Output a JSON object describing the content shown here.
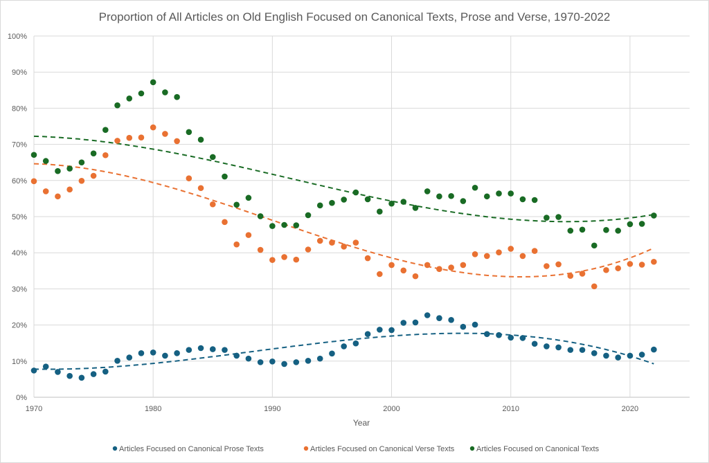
{
  "chart_data": {
    "type": "scatter",
    "title": "Proportion of All Articles on Old English Focused on Canonical Texts, Prose and Verse, 1970-2022",
    "xlabel": "Year",
    "ylabel": "",
    "xlim": [
      1970,
      2025
    ],
    "ylim": [
      0,
      1
    ],
    "x_ticks": [
      1970,
      1980,
      1990,
      2000,
      2010,
      2020
    ],
    "x_tick_labels": [
      "1970",
      "1980",
      "1990",
      "2000",
      "2010",
      "2020"
    ],
    "y_ticks": [
      0,
      0.1,
      0.2,
      0.3,
      0.4,
      0.5,
      0.6,
      0.7,
      0.8,
      0.9,
      1.0
    ],
    "y_tick_labels": [
      "0%",
      "10%",
      "20%",
      "30%",
      "40%",
      "50%",
      "60%",
      "70%",
      "80%",
      "90%",
      "100%"
    ],
    "grid": true,
    "legend_position": "bottom",
    "trendline": "polynomial (dashed)",
    "x": [
      1970,
      1971,
      1972,
      1973,
      1974,
      1975,
      1976,
      1977,
      1978,
      1979,
      1980,
      1981,
      1982,
      1983,
      1984,
      1985,
      1986,
      1987,
      1988,
      1989,
      1990,
      1991,
      1992,
      1993,
      1994,
      1995,
      1996,
      1997,
      1998,
      1999,
      2000,
      2001,
      2002,
      2003,
      2004,
      2005,
      2006,
      2007,
      2008,
      2009,
      2010,
      2011,
      2012,
      2013,
      2014,
      2015,
      2016,
      2017,
      2018,
      2019,
      2020,
      2021,
      2022
    ],
    "series": [
      {
        "name": "Articles Focused on Canonical Prose Texts",
        "color": "#156082",
        "values": [
          0.074,
          0.085,
          0.07,
          0.059,
          0.054,
          0.064,
          0.071,
          0.101,
          0.11,
          0.122,
          0.124,
          0.115,
          0.122,
          0.131,
          0.136,
          0.133,
          0.131,
          0.115,
          0.107,
          0.097,
          0.099,
          0.092,
          0.097,
          0.101,
          0.107,
          0.121,
          0.141,
          0.149,
          0.175,
          0.187,
          0.186,
          0.206,
          0.207,
          0.227,
          0.219,
          0.214,
          0.195,
          0.201,
          0.175,
          0.172,
          0.165,
          0.164,
          0.148,
          0.141,
          0.138,
          0.131,
          0.131,
          0.122,
          0.115,
          0.11,
          0.115,
          0.118,
          0.132
        ]
      },
      {
        "name": "Articles Focused on Canonical Verse Texts",
        "color": "#e97132",
        "values": [
          0.598,
          0.57,
          0.556,
          0.575,
          0.599,
          0.613,
          0.67,
          0.71,
          0.718,
          0.719,
          0.747,
          0.729,
          0.709,
          0.606,
          0.579,
          0.534,
          0.485,
          0.423,
          0.449,
          0.408,
          0.38,
          0.388,
          0.381,
          0.409,
          0.433,
          0.428,
          0.417,
          0.428,
          0.385,
          0.341,
          0.366,
          0.351,
          0.335,
          0.366,
          0.355,
          0.359,
          0.366,
          0.396,
          0.391,
          0.401,
          0.411,
          0.391,
          0.405,
          0.363,
          0.368,
          0.336,
          0.342,
          0.307,
          0.352,
          0.357,
          0.369,
          0.367,
          0.375
        ]
      },
      {
        "name": "Articles Focused on Canonical Texts",
        "color": "#196b24",
        "values": [
          0.671,
          0.654,
          0.626,
          0.633,
          0.65,
          0.675,
          0.74,
          0.808,
          0.827,
          0.841,
          0.872,
          0.844,
          0.831,
          0.734,
          0.713,
          0.665,
          0.611,
          0.533,
          0.552,
          0.501,
          0.474,
          0.477,
          0.476,
          0.504,
          0.531,
          0.538,
          0.547,
          0.567,
          0.548,
          0.514,
          0.536,
          0.541,
          0.524,
          0.57,
          0.556,
          0.557,
          0.543,
          0.58,
          0.556,
          0.564,
          0.564,
          0.548,
          0.546,
          0.497,
          0.499,
          0.461,
          0.464,
          0.42,
          0.463,
          0.461,
          0.479,
          0.48,
          0.503
        ]
      }
    ]
  }
}
